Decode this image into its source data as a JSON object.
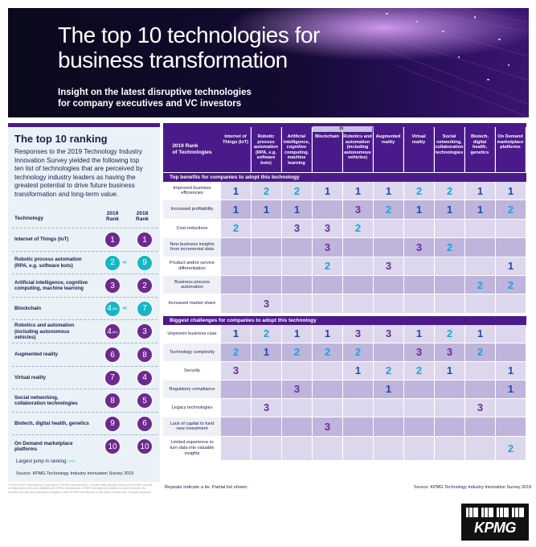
{
  "hero": {
    "title_lines": [
      "The top 10 technologies for",
      "business transformation"
    ],
    "subtitle_lines": [
      "Insight on the latest disruptive technologies",
      "for company executives and VC investors"
    ]
  },
  "left_panel": {
    "title": "The top 10 ranking",
    "description_lines": [
      "Responses to the 2019 Technology Industry",
      "Innovation Survey yielded the following top",
      "ten list of technologies that are perceived by",
      "technology industry leaders as having the",
      "greatest potential to drive future business",
      "transformation and long-term value."
    ],
    "col_technology": "Technology",
    "col_2019": [
      "2019",
      "Rank"
    ],
    "col_2018": [
      "2018",
      "Rank"
    ],
    "rows": [
      {
        "name": [
          "Internet of Things (IoT)"
        ],
        "r2019": "1",
        "r2018": "1",
        "jump": false,
        "tie": ""
      },
      {
        "name": [
          "Robotic process automation",
          "(RPA, e.g. software bots)"
        ],
        "r2019": "2",
        "r2018": "9",
        "jump": true,
        "tie": ""
      },
      {
        "name": [
          "Artificial intelligence, cognitive",
          "computing, machine learning"
        ],
        "r2019": "3",
        "r2018": "2",
        "jump": false,
        "tie": ""
      },
      {
        "name": [
          "Blockchain"
        ],
        "r2019": "4",
        "r2018": "7",
        "jump": true,
        "tie": "(tie)"
      },
      {
        "name": [
          "Robotics and automation",
          "(including autonomous",
          "vehicles)"
        ],
        "r2019": "4",
        "r2018": "3",
        "jump": false,
        "tie": "(tie)"
      },
      {
        "name": [
          "Augmented reality"
        ],
        "r2019": "6",
        "r2018": "8",
        "jump": false,
        "tie": ""
      },
      {
        "name": [
          "Virtual reality"
        ],
        "r2019": "7",
        "r2018": "4",
        "jump": false,
        "tie": ""
      },
      {
        "name": [
          "Social networking,",
          "collaboration technologies"
        ],
        "r2019": "8",
        "r2018": "5",
        "jump": false,
        "tie": ""
      },
      {
        "name": [
          "Biotech, digital health, genetics"
        ],
        "r2019": "9",
        "r2018": "6",
        "jump": false,
        "tie": ""
      },
      {
        "name": [
          "On Demand marketplace",
          "platforms"
        ],
        "r2019": "10",
        "r2018": "10",
        "jump": false,
        "tie": ""
      }
    ],
    "jump_glyph": "‹‹‹‹",
    "largest_jump_label": "Largest jump in ranking:",
    "source": "Source: KPMG Technology Industry Innovation Survey 2019",
    "fine_print": "© 2019 KPMG International Cooperative (\"KPMG International\"), a Swiss entity. Member firms of the KPMG network of independent firms are affiliated with KPMG International. KPMG International provides no client services. No member firm has any authority to obligate or bind KPMG International or any other member firm. All rights reserved."
  },
  "table": {
    "rank_header": [
      "2019 Rank",
      "of Technologies"
    ],
    "tie_label": "(tie)",
    "columns": [
      [
        "Internet of",
        "Things (IoT)"
      ],
      [
        "Robotic",
        "process",
        "automation",
        "(RPA, e.g.",
        "software",
        "bots)"
      ],
      [
        "Artificial",
        "intelligence,",
        "cognitive",
        "computing,",
        "machine",
        "learning"
      ],
      [
        "Blockchain"
      ],
      [
        "Robotics and",
        "automation",
        "(including",
        "autonomous",
        "vehicles)"
      ],
      [
        "Augmented",
        "reality"
      ],
      [
        "Virtual",
        "reality"
      ],
      [
        "Social",
        "networking,",
        "collaboration",
        "technologies"
      ],
      [
        "Biotech,",
        "digital",
        "health,",
        "genetics"
      ],
      [
        "On Demand",
        "marketplace",
        "platforms"
      ]
    ],
    "benefits_title": "Top benefits for companies to adopt this technology",
    "benefits": [
      {
        "label": [
          "Improved business",
          "efficiencies"
        ],
        "vals": [
          "1",
          "2",
          "2",
          "1",
          "1",
          "1",
          "2",
          "2",
          "1",
          "1"
        ]
      },
      {
        "label": [
          "Increased profitability"
        ],
        "vals": [
          "1",
          "1",
          "1",
          "",
          "3",
          "2",
          "1",
          "1",
          "1",
          "2"
        ]
      },
      {
        "label": [
          "Cost reductions"
        ],
        "vals": [
          "2",
          "",
          "3",
          "3",
          "2",
          "",
          "",
          "",
          "",
          ""
        ]
      },
      {
        "label": [
          "New business insights",
          "from incremental data"
        ],
        "vals": [
          "",
          "",
          "",
          "3",
          "",
          "",
          "3",
          "2",
          "",
          ""
        ]
      },
      {
        "label": [
          "Product and/or service",
          "differentiation"
        ],
        "vals": [
          "",
          "",
          "",
          "2",
          "",
          "3",
          "",
          "",
          "",
          "1"
        ]
      },
      {
        "label": [
          "Business process",
          "automation"
        ],
        "vals": [
          "",
          "",
          "",
          "",
          "",
          "",
          "",
          "",
          "2",
          "2"
        ]
      },
      {
        "label": [
          "Increased market share"
        ],
        "vals": [
          "",
          "3",
          "",
          "",
          "",
          "",
          "",
          "",
          "",
          ""
        ]
      }
    ],
    "challenges_title": "Biggest challenges for companies to adopt this technology",
    "challenges": [
      {
        "label": [
          "Unproven business case"
        ],
        "vals": [
          "1",
          "2",
          "1",
          "1",
          "3",
          "3",
          "1",
          "2",
          "1",
          ""
        ]
      },
      {
        "label": [
          "Technology complexity"
        ],
        "vals": [
          "2",
          "1",
          "2",
          "2",
          "2",
          "",
          "3",
          "3",
          "2",
          ""
        ]
      },
      {
        "label": [
          "Security"
        ],
        "vals": [
          "3",
          "",
          "",
          "",
          "1",
          "2",
          "2",
          "1",
          "",
          "1"
        ]
      },
      {
        "label": [
          "Regulatory compliance"
        ],
        "vals": [
          "",
          "",
          "3",
          "",
          "",
          "1",
          "",
          "",
          "",
          "1"
        ]
      },
      {
        "label": [
          "Legacy technologies"
        ],
        "vals": [
          "",
          "3",
          "",
          "",
          "",
          "",
          "",
          "",
          "3",
          ""
        ]
      },
      {
        "label": [
          "Lack of capital to fund",
          "new investment"
        ],
        "vals": [
          "",
          "",
          "",
          "3",
          "",
          "",
          "",
          "",
          "",
          ""
        ]
      },
      {
        "label": [
          "Limited experience to",
          "turn data into valuable",
          "insights"
        ],
        "vals": [
          "",
          "",
          "",
          "",
          "",
          "",
          "",
          "",
          "",
          "2"
        ]
      }
    ],
    "footnote_left": "Repeats indicate a tie. Partial list shown.",
    "footnote_right": "Source: KPMG Technology Industry Innovation Survey 2019"
  },
  "colors": {
    "purple_dark": "#4a1a8a",
    "value_blue": "#1e4aa8",
    "value_teal": "#1aa6d8",
    "value_purple": "#6a2d96",
    "cell_light": "#ddd7ee",
    "cell_mid": "#bfb4dc",
    "teal_circle": "#15b6c5",
    "purple_circle": "#6c2a8e"
  },
  "logo": {
    "text": "KPMG"
  }
}
